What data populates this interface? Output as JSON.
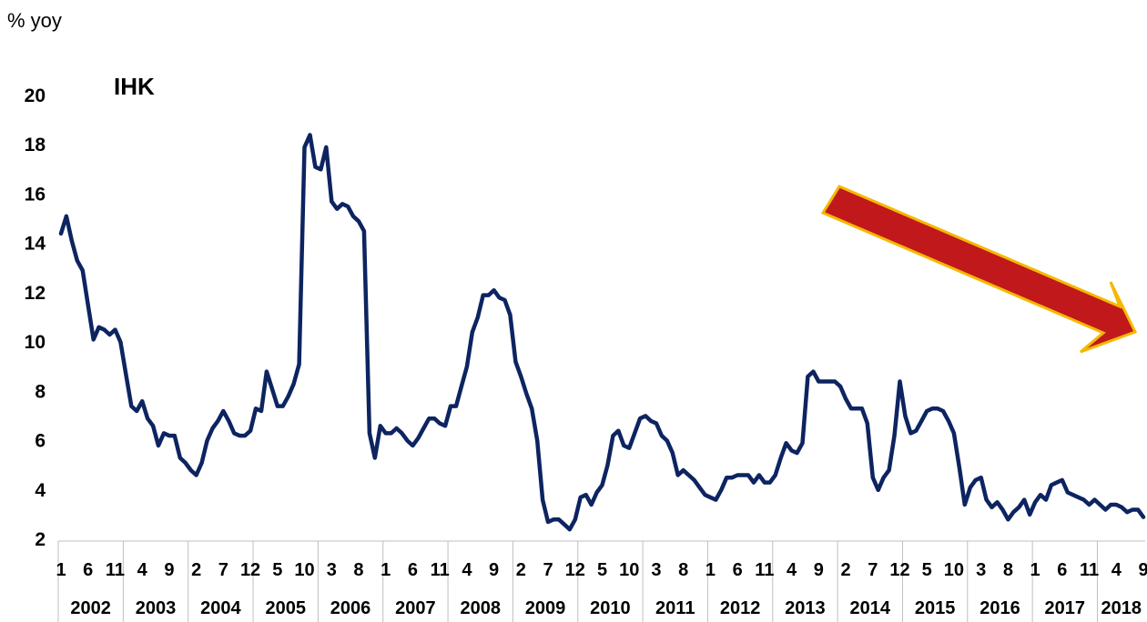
{
  "chart_data": {
    "type": "line",
    "title": "IHK",
    "ylabel": "% yoy",
    "xlabel": "",
    "ylim": [
      2,
      20
    ],
    "yticks": [
      2,
      4,
      6,
      8,
      10,
      12,
      14,
      16,
      18,
      20
    ],
    "years": [
      "2002",
      "2003",
      "2004",
      "2005",
      "2006",
      "2007",
      "2008",
      "2009",
      "2010",
      "2011",
      "2012",
      "2013",
      "2014",
      "2015",
      "2016",
      "2017",
      "2018"
    ],
    "month_ticks": [
      [
        1,
        6,
        11
      ],
      [
        4,
        9
      ],
      [
        2,
        7,
        12
      ],
      [
        5,
        10
      ],
      [
        3,
        8
      ],
      [
        1,
        6,
        11
      ],
      [
        4,
        9
      ],
      [
        2,
        7,
        12
      ],
      [
        5,
        10
      ],
      [
        3,
        8
      ],
      [
        1,
        6,
        11
      ],
      [
        4,
        9
      ],
      [
        2,
        7,
        12
      ],
      [
        5,
        10
      ],
      [
        3,
        8
      ],
      [
        1,
        6,
        11
      ],
      [
        4,
        9
      ]
    ],
    "series": [
      {
        "color": "#0d2461",
        "x_start": "2002-01",
        "x_end": "2018-09",
        "values": [
          14.4,
          15.1,
          14.1,
          13.3,
          12.9,
          11.5,
          10.1,
          10.6,
          10.5,
          10.3,
          10.5,
          10.0,
          8.7,
          7.4,
          7.2,
          7.6,
          6.9,
          6.6,
          5.8,
          6.3,
          6.2,
          6.2,
          5.3,
          5.1,
          4.8,
          4.6,
          5.1,
          6.0,
          6.5,
          6.8,
          7.2,
          6.8,
          6.3,
          6.2,
          6.2,
          6.4,
          7.3,
          7.2,
          8.8,
          8.1,
          7.4,
          7.4,
          7.8,
          8.3,
          9.1,
          17.9,
          18.4,
          17.1,
          17.0,
          17.9,
          15.7,
          15.4,
          15.6,
          15.5,
          15.1,
          14.9,
          14.5,
          6.3,
          5.3,
          6.6,
          6.3,
          6.3,
          6.5,
          6.3,
          6.0,
          5.8,
          6.1,
          6.5,
          6.9,
          6.9,
          6.7,
          6.6,
          7.4,
          7.4,
          8.2,
          9.0,
          10.4,
          11.0,
          11.9,
          11.9,
          12.1,
          11.8,
          11.7,
          11.1,
          9.2,
          8.6,
          7.9,
          7.3,
          6.0,
          3.6,
          2.7,
          2.8,
          2.8,
          2.6,
          2.4,
          2.8,
          3.7,
          3.8,
          3.4,
          3.9,
          4.2,
          5.0,
          6.2,
          6.4,
          5.8,
          5.7,
          6.3,
          6.9,
          7.0,
          6.8,
          6.7,
          6.2,
          6.0,
          5.5,
          4.6,
          4.8,
          4.6,
          4.4,
          4.1,
          3.8,
          3.7,
          3.6,
          4.0,
          4.5,
          4.5,
          4.6,
          4.6,
          4.6,
          4.3,
          4.6,
          4.3,
          4.3,
          4.6,
          5.3,
          5.9,
          5.6,
          5.5,
          5.9,
          8.6,
          8.8,
          8.4,
          8.4,
          8.4,
          8.4,
          8.2,
          7.7,
          7.3,
          7.3,
          7.3,
          6.7,
          4.5,
          4.0,
          4.5,
          4.8,
          6.2,
          8.4,
          7.0,
          6.3,
          6.4,
          6.8,
          7.2,
          7.3,
          7.3,
          7.2,
          6.8,
          6.3,
          4.9,
          3.4,
          4.1,
          4.4,
          4.5,
          3.6,
          3.3,
          3.5,
          3.2,
          2.8,
          3.1,
          3.3,
          3.6,
          3.0,
          3.5,
          3.8,
          3.6,
          4.2,
          4.3,
          4.4,
          3.9,
          3.8,
          3.7,
          3.6,
          3.4,
          3.6,
          3.4,
          3.2,
          3.4,
          3.4,
          3.3,
          3.1,
          3.2,
          3.2,
          2.9
        ]
      }
    ],
    "annotation": {
      "type": "arrow",
      "color": "#c0181b",
      "outline": "#f5b800",
      "direction": "down-right"
    },
    "grid": false,
    "legend": "none"
  }
}
